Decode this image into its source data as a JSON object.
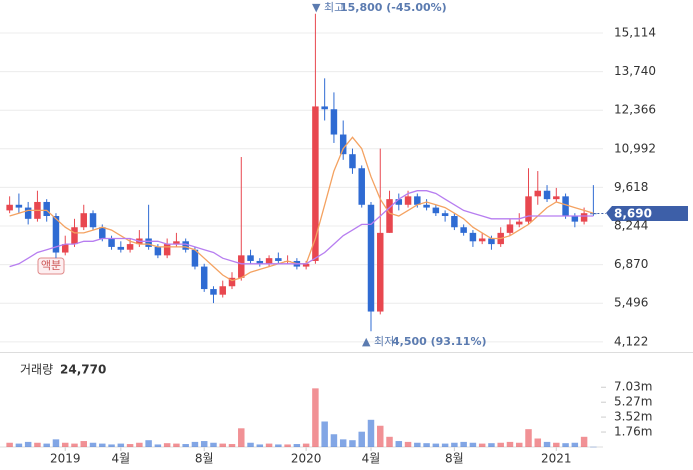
{
  "chart_data": {
    "type": "candlestick",
    "open": [
      8800,
      9000,
      8900,
      8500,
      9100,
      8600,
      7300,
      7600,
      8200,
      8700,
      8200,
      7800,
      7500,
      7400,
      7600,
      7800,
      7500,
      7200,
      7600,
      7700,
      7400,
      6800,
      6000,
      5800,
      6100,
      6400,
      7200,
      7000,
      6900,
      7100,
      7000,
      7000,
      6800,
      7000,
      12500,
      12400,
      11500,
      10800,
      10300,
      9000,
      5200,
      8000,
      9200,
      9000,
      9300,
      9000,
      8900,
      8700,
      8600,
      8200,
      8000,
      7700,
      7800,
      7600,
      8000,
      8300,
      8400,
      9300,
      9500,
      9200,
      9300,
      8600,
      8400,
      8700
    ],
    "high": [
      9300,
      9400,
      9100,
      9500,
      9200,
      8700,
      7900,
      8500,
      9000,
      8800,
      8300,
      7900,
      7700,
      7800,
      8100,
      9000,
      7600,
      7800,
      8000,
      7800,
      7500,
      6900,
      6100,
      6300,
      6600,
      10700,
      7400,
      7100,
      7200,
      7300,
      7200,
      7100,
      7000,
      15800,
      13500,
      13000,
      12000,
      11000,
      10400,
      9100,
      11000,
      9500,
      9400,
      9500,
      9400,
      9200,
      9000,
      8800,
      8700,
      8300,
      8100,
      8000,
      7900,
      8200,
      8500,
      8700,
      10300,
      10200,
      9700,
      9600,
      9400,
      8700,
      8900,
      9700
    ],
    "low": [
      8700,
      8700,
      8300,
      8400,
      8400,
      7100,
      7200,
      7500,
      8100,
      8100,
      7700,
      7400,
      7300,
      7300,
      7500,
      7400,
      7100,
      7100,
      7500,
      7300,
      6700,
      5900,
      5500,
      5700,
      6000,
      6300,
      6900,
      6800,
      6800,
      6900,
      6900,
      6700,
      6700,
      6900,
      12000,
      11200,
      10600,
      10100,
      8900,
      4500,
      5100,
      8000,
      8800,
      8900,
      8900,
      8800,
      8600,
      8400,
      8100,
      7900,
      7500,
      7600,
      7400,
      7500,
      7900,
      8200,
      8300,
      9000,
      9100,
      9100,
      8500,
      8200,
      8300,
      8600
    ],
    "close": [
      9000,
      8900,
      8500,
      9100,
      8600,
      7300,
      7600,
      8200,
      8700,
      8200,
      7800,
      7500,
      7400,
      7600,
      7800,
      7500,
      7200,
      7600,
      7700,
      7400,
      6800,
      6000,
      5800,
      6100,
      6400,
      7200,
      7000,
      6900,
      7100,
      7000,
      7000,
      6800,
      6900,
      12500,
      12400,
      11500,
      10800,
      10300,
      9000,
      5200,
      8000,
      9200,
      9000,
      9300,
      9000,
      8900,
      8700,
      8600,
      8200,
      8000,
      7700,
      7800,
      7600,
      8000,
      8300,
      8400,
      9300,
      9500,
      9200,
      9300,
      8600,
      8400,
      8700,
      8690
    ],
    "volume": [
      500000,
      400000,
      600000,
      500000,
      400000,
      900000,
      500000,
      400000,
      700000,
      500000,
      400000,
      300000,
      400000,
      350000,
      500000,
      800000,
      300000,
      450000,
      400000,
      350000,
      600000,
      700000,
      500000,
      400000,
      350000,
      2200000,
      500000,
      300000,
      400000,
      300000,
      300000,
      350000,
      400000,
      6900000,
      3000000,
      1500000,
      900000,
      800000,
      1800000,
      3200000,
      2500000,
      1200000,
      700000,
      600000,
      500000,
      450000,
      400000,
      400000,
      500000,
      600000,
      500000,
      400000,
      450000,
      500000,
      600000,
      500000,
      2100000,
      1000000,
      600000,
      500000,
      450000,
      500000,
      1200000,
      24770
    ],
    "lines": [
      {
        "color": "#f4a261",
        "values": [
          8600,
          8700,
          8800,
          8800,
          8800,
          8500,
          8200,
          8000,
          8000,
          8100,
          8200,
          8100,
          7900,
          7700,
          7600,
          7600,
          7500,
          7500,
          7500,
          7500,
          7400,
          7100,
          6800,
          6500,
          6300,
          6400,
          6600,
          6700,
          6800,
          6900,
          7000,
          6900,
          6900,
          7800,
          9000,
          10200,
          11000,
          11400,
          11000,
          10000,
          9200,
          8700,
          8600,
          8800,
          9000,
          9100,
          9000,
          8900,
          8700,
          8500,
          8200,
          8000,
          7800,
          7800,
          7900,
          8100,
          8300,
          8600,
          8900,
          9100,
          9000,
          8900,
          8800,
          8700
        ]
      },
      {
        "color": "#b77ef0",
        "values": [
          6800,
          6900,
          7100,
          7300,
          7400,
          7500,
          7600,
          7600,
          7700,
          7700,
          7800,
          7800,
          7800,
          7800,
          7700,
          7700,
          7700,
          7600,
          7600,
          7600,
          7500,
          7400,
          7300,
          7100,
          7000,
          6900,
          6900,
          6900,
          6900,
          6900,
          6900,
          6900,
          6900,
          7100,
          7300,
          7600,
          7900,
          8100,
          8300,
          8300,
          8600,
          8900,
          9200,
          9400,
          9500,
          9500,
          9400,
          9200,
          9000,
          8800,
          8700,
          8600,
          8500,
          8500,
          8500,
          8500,
          8600,
          8600,
          8600,
          8600,
          8600,
          8600,
          8600,
          8600
        ]
      }
    ],
    "up_color": "#e8474f",
    "down_color": "#2f6bd3",
    "ylim": [
      3760,
      16110
    ],
    "yticks": [
      {
        "value": 4122,
        "label": "4,122"
      },
      {
        "value": 5496,
        "label": "5,496"
      },
      {
        "value": 6870,
        "label": "6,870"
      },
      {
        "value": 8244,
        "label": "8,244"
      },
      {
        "value": 9618,
        "label": "9,618"
      },
      {
        "value": 10992,
        "label": "10,992"
      },
      {
        "value": 12366,
        "label": "12,366"
      },
      {
        "value": 13740,
        "label": "13,740"
      },
      {
        "value": 15114,
        "label": "15,114"
      }
    ],
    "xticks": [
      {
        "value": 6,
        "label": "2019"
      },
      {
        "value": 12,
        "label": "4월"
      },
      {
        "value": 21,
        "label": "8월"
      },
      {
        "value": 32,
        "label": "2020"
      },
      {
        "value": 39,
        "label": "4월"
      },
      {
        "value": 48,
        "label": "8월"
      },
      {
        "value": 59,
        "label": "2021"
      }
    ],
    "grid": true,
    "last_price": {
      "value": 8690,
      "label": "8,690"
    },
    "high_annotation": {
      "prefix": "▼ 최고",
      "text": "15,800 (-45.00%)"
    },
    "low_annotation": {
      "prefix": "▲ 최저",
      "text": "4,500 (93.11%)"
    },
    "split_marker": "액분",
    "volume_title": "거래량",
    "volume_label": "24,770",
    "volume_ylim": [
      0,
      10000000
    ],
    "volume_ticks": [
      {
        "value": 1760000,
        "label": "1.76m"
      },
      {
        "value": 3520000,
        "label": "3.52m"
      },
      {
        "value": 5270000,
        "label": "5.27m"
      },
      {
        "value": 7030000,
        "label": "7.03m"
      }
    ]
  }
}
